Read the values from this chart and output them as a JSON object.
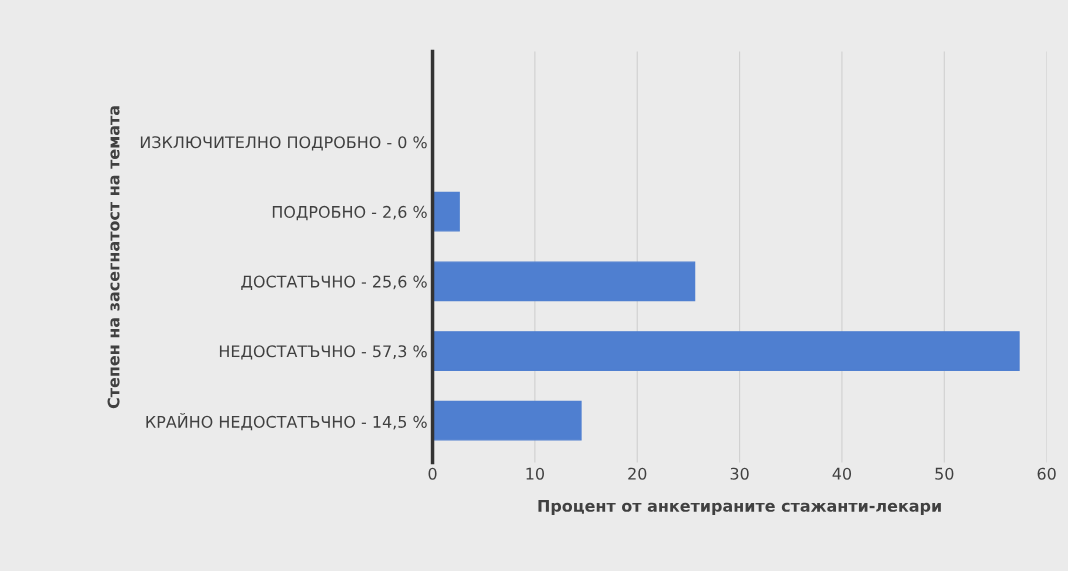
{
  "chart_data": {
    "type": "bar",
    "orientation": "horizontal",
    "categories": [
      "ИЗКЛЮЧИТЕЛНО ПОДРОБНО - 0 %",
      "ПОДРОБНО - 2,6 %",
      "ДОСТАТЪЧНО - 25,6 %",
      "НЕДОСТАТЪЧНО - 57,3 %",
      "КРАЙНО НЕДОСТАТЪЧНО - 14,5 %"
    ],
    "values": [
      0,
      2.6,
      25.6,
      57.3,
      14.5
    ],
    "color": "#4f7fd0",
    "xlim": [
      0,
      60
    ],
    "xticks": [
      0,
      10,
      20,
      30,
      40,
      50,
      60
    ],
    "xlabel": "Процент от анкетираните стажанти-лекари",
    "ylabel": "Степен на засегнатост на темата",
    "grid": "x"
  }
}
